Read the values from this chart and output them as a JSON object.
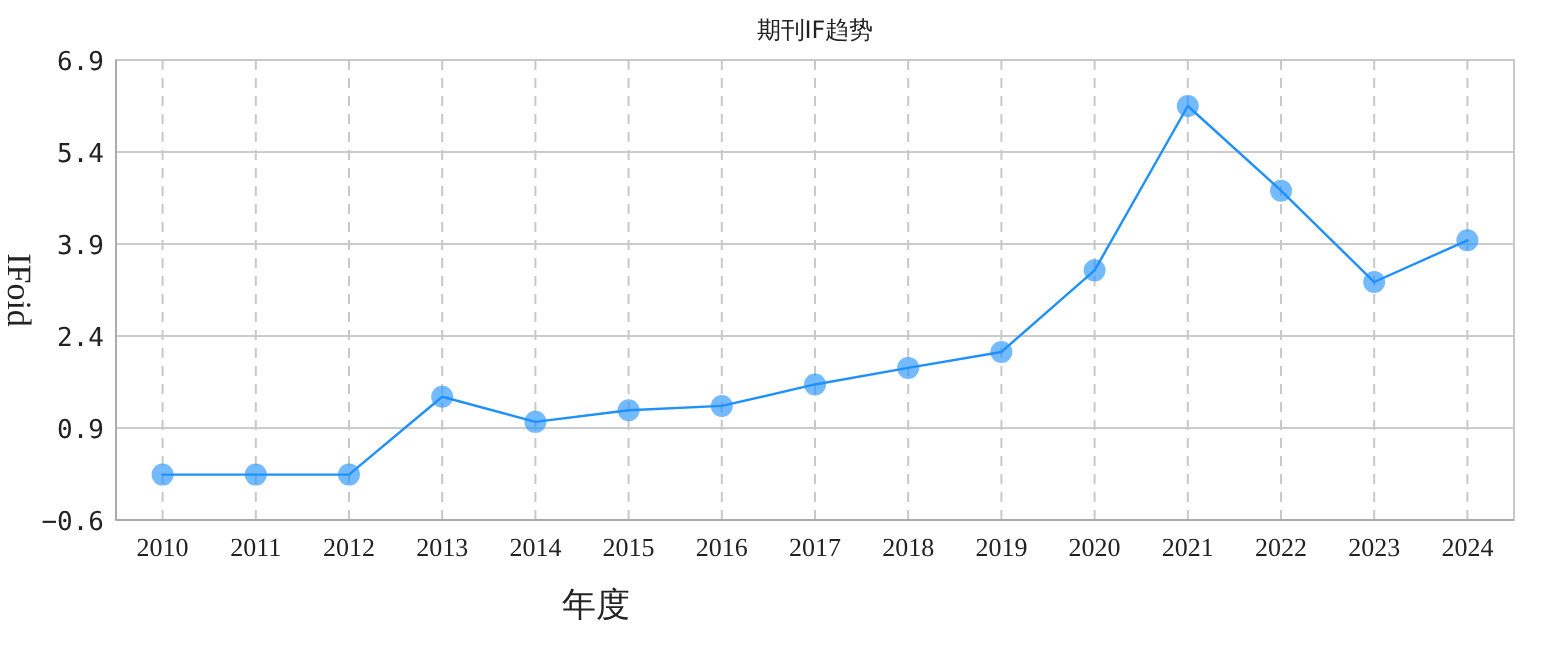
{
  "chart_data": {
    "type": "line",
    "title": "期刊IF趋势",
    "xlabel": "年度",
    "ylabel": "IFoid",
    "categories": [
      "2010",
      "2011",
      "2012",
      "2013",
      "2014",
      "2015",
      "2016",
      "2017",
      "2018",
      "2019",
      "2020",
      "2021",
      "2022",
      "2023",
      "2024"
    ],
    "series": [
      {
        "color": "#1e90ff",
        "values": [
          0.14,
          0.14,
          0.14,
          1.41,
          1.0,
          1.19,
          1.26,
          1.61,
          1.88,
          2.14,
          3.47,
          6.15,
          4.77,
          3.28,
          3.96
        ]
      }
    ],
    "ylim": [
      -0.6,
      6.9
    ],
    "yticks": [
      -0.6,
      0.9,
      2.4,
      3.9,
      5.4,
      6.9
    ],
    "grid": true,
    "marker": "circle",
    "line_style": "solid"
  }
}
